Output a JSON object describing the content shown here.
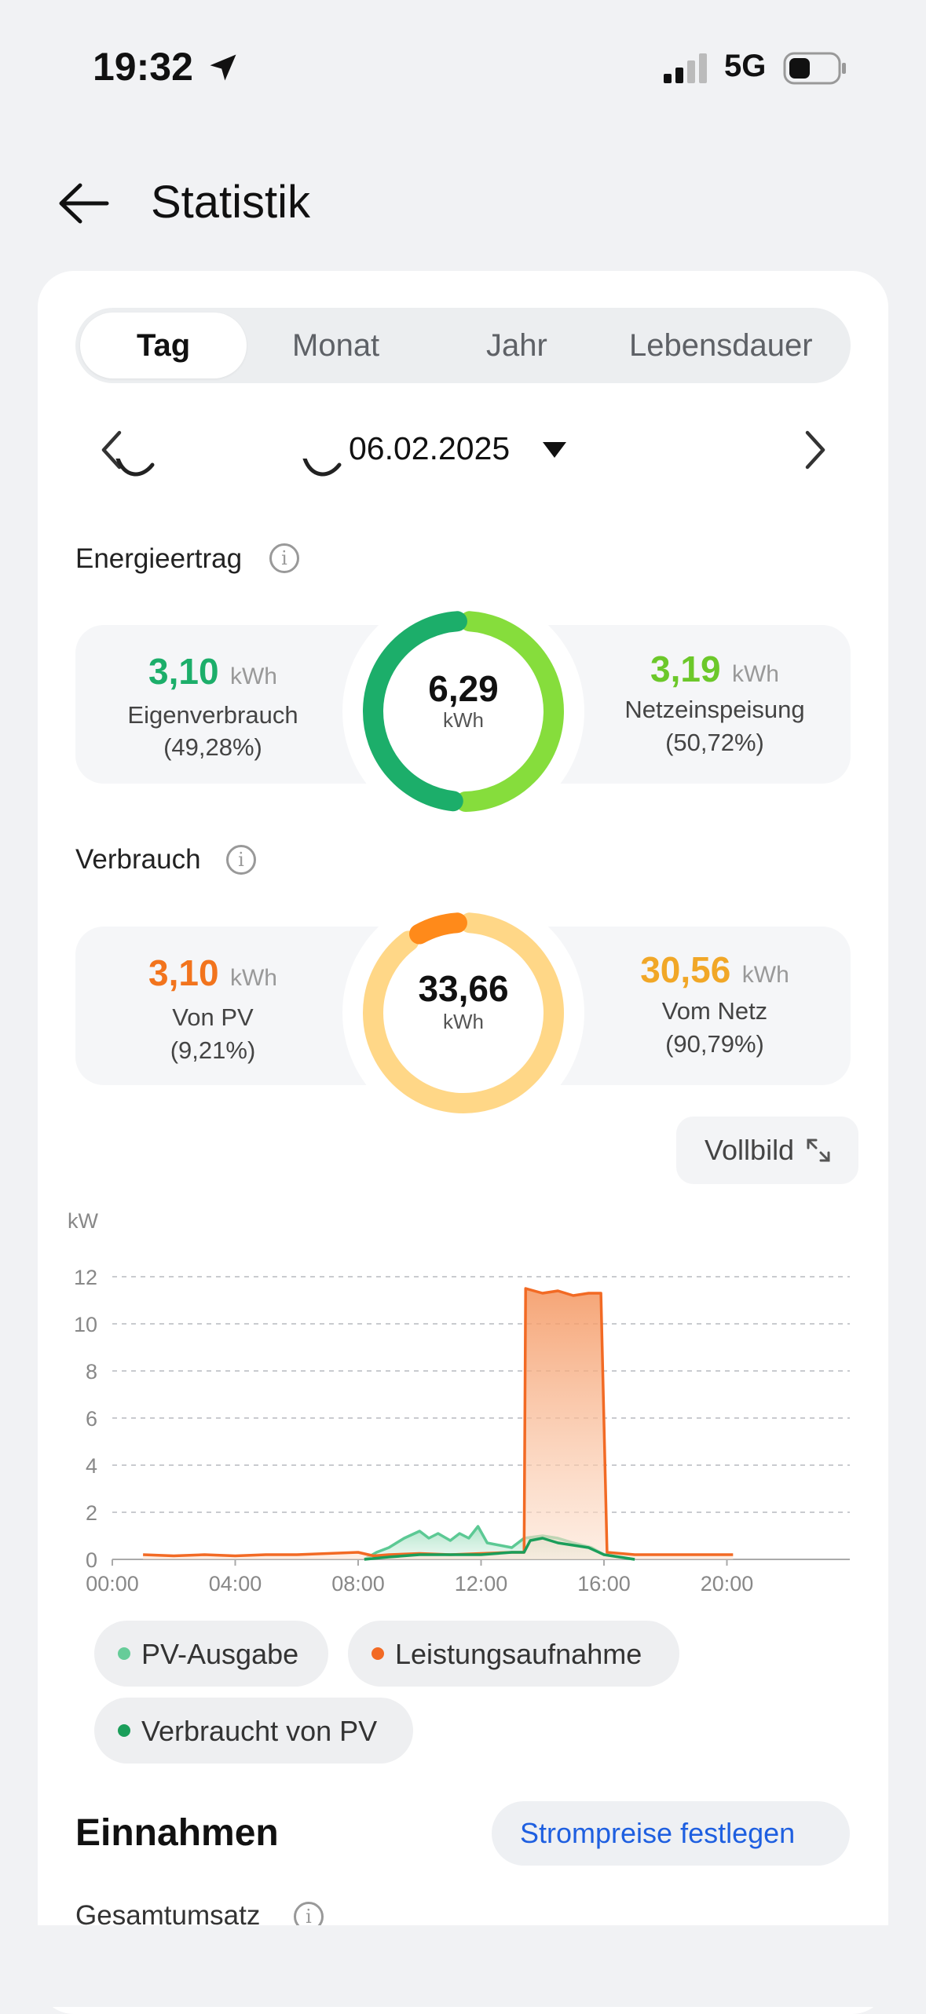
{
  "status_bar": {
    "time": "19:32",
    "network": "5G"
  },
  "header": {
    "title": "Statistik"
  },
  "tabs": [
    {
      "label": "Tag",
      "active": true
    },
    {
      "label": "Monat",
      "active": false
    },
    {
      "label": "Jahr",
      "active": false
    },
    {
      "label": "Lebensdauer",
      "active": false
    }
  ],
  "date": {
    "value": "06.02.2025"
  },
  "energieertrag": {
    "label": "Energieertrag",
    "left": {
      "value": "3,10",
      "unit": "kWh",
      "label": "Eigenverbrauch",
      "percent": "(49,28%)"
    },
    "right": {
      "value": "3,19",
      "unit": "kWh",
      "label": "Netzeinspeisung",
      "percent": "(50,72%)"
    },
    "total": {
      "value": "6,29",
      "unit": "kWh"
    },
    "share": 0.4928,
    "colors": {
      "left": "#1cae6a",
      "right": "#86dd3c"
    }
  },
  "verbrauch": {
    "label": "Verbrauch",
    "left": {
      "value": "3,10",
      "unit": "kWh",
      "label": "Von PV",
      "percent": "(9,21%)"
    },
    "right": {
      "value": "30,56",
      "unit": "kWh",
      "label": "Vom Netz",
      "percent": "(90,79%)"
    },
    "total": {
      "value": "33,66",
      "unit": "kWh"
    },
    "share": 0.0921,
    "colors": {
      "left": "#ff8a1a",
      "right": "#ffd787"
    }
  },
  "vollbild_label": "Vollbild",
  "chart_data": {
    "type": "area",
    "ylabel": "kW",
    "ylim": [
      0,
      12
    ],
    "yticks": [
      "0",
      "2",
      "4",
      "6",
      "8",
      "10",
      "12"
    ],
    "xlim": [
      0,
      24
    ],
    "xticks": [
      "00:00",
      "04:00",
      "08:00",
      "12:00",
      "16:00",
      "20:00"
    ],
    "grid": true,
    "series": [
      {
        "name": "PV-Ausgabe",
        "color": "#5cc994",
        "points": [
          [
            8.2,
            0
          ],
          [
            8.6,
            0.3
          ],
          [
            9,
            0.5
          ],
          [
            9.5,
            0.9
          ],
          [
            10,
            1.2
          ],
          [
            10.3,
            0.9
          ],
          [
            10.6,
            1.1
          ],
          [
            11,
            0.8
          ],
          [
            11.3,
            1.1
          ],
          [
            11.6,
            0.9
          ],
          [
            11.9,
            1.4
          ],
          [
            12.2,
            0.7
          ],
          [
            12.6,
            0.6
          ],
          [
            13,
            0.5
          ],
          [
            13.4,
            0.9
          ],
          [
            14,
            1.0
          ],
          [
            14.5,
            0.9
          ],
          [
            15,
            0.7
          ],
          [
            15.6,
            0.5
          ],
          [
            16,
            0.2
          ],
          [
            16.5,
            0.1
          ],
          [
            17,
            0
          ]
        ]
      },
      {
        "name": "Leistungsaufnahme",
        "color": "#f26a24",
        "points": [
          [
            1,
            0.2
          ],
          [
            2,
            0.15
          ],
          [
            3,
            0.2
          ],
          [
            4,
            0.15
          ],
          [
            5,
            0.2
          ],
          [
            6,
            0.2
          ],
          [
            7,
            0.25
          ],
          [
            8,
            0.3
          ],
          [
            8.5,
            0.15
          ],
          [
            9,
            0.2
          ],
          [
            10,
            0.25
          ],
          [
            11,
            0.2
          ],
          [
            12,
            0.25
          ],
          [
            13,
            0.3
          ],
          [
            13.4,
            0.3
          ],
          [
            13.45,
            11.5
          ],
          [
            14,
            11.3
          ],
          [
            14.5,
            11.4
          ],
          [
            15,
            11.2
          ],
          [
            15.5,
            11.3
          ],
          [
            15.9,
            11.3
          ],
          [
            16.1,
            0.3
          ],
          [
            17,
            0.2
          ],
          [
            18,
            0.2
          ],
          [
            19,
            0.2
          ],
          [
            20.2,
            0.2
          ]
        ]
      },
      {
        "name": "Verbraucht von PV",
        "color": "#1a9e5a",
        "points": [
          [
            8.2,
            0
          ],
          [
            9,
            0.1
          ],
          [
            10,
            0.2
          ],
          [
            11,
            0.2
          ],
          [
            12,
            0.2
          ],
          [
            13,
            0.3
          ],
          [
            13.4,
            0.3
          ],
          [
            13.6,
            0.8
          ],
          [
            14,
            0.9
          ],
          [
            14.5,
            0.7
          ],
          [
            15,
            0.6
          ],
          [
            15.5,
            0.5
          ],
          [
            16,
            0.2
          ],
          [
            16.5,
            0.1
          ],
          [
            17,
            0
          ]
        ]
      }
    ]
  },
  "legend": [
    {
      "label": "PV-Ausgabe",
      "color": "#66cc99"
    },
    {
      "label": "Leistungsaufnahme",
      "color": "#f26a24"
    },
    {
      "label": "Verbraucht von PV",
      "color": "#1a9e5a"
    }
  ],
  "einnahmen": {
    "title": "Einnahmen",
    "button": "Strompreise festlegen"
  },
  "gesamtumsatz": {
    "label": "Gesamtumsatz"
  }
}
